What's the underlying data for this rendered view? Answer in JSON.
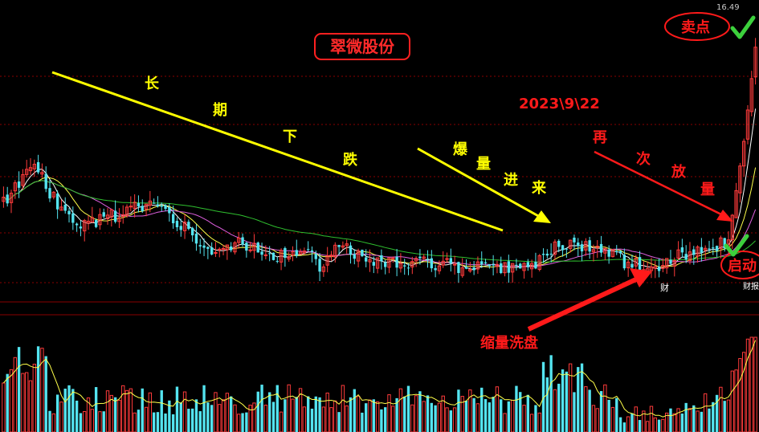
{
  "chart_data": {
    "type": "candlestick",
    "title": "翠微股份",
    "price_label": "16.49",
    "colors": {
      "up": "#ff3b3b",
      "down": "#54e4f0",
      "ma5": "#ffffff",
      "ma10": "#ffff4a",
      "ma20": "#e060e0",
      "ma60": "#2fbf2f",
      "grid": "#8a0000",
      "annotation_yellow": "#ffff00",
      "annotation_red": "#ff1a1a",
      "check": "#3cd03c"
    },
    "volume_colors": {
      "up": "#ff3b3b",
      "down": "#54e4f0"
    },
    "annotations": {
      "date": "2023\\9\\22",
      "long_decline_chars": [
        "长",
        "期",
        "下",
        "跌"
      ],
      "volume_in_chars": [
        "爆",
        "量",
        "进",
        "来"
      ],
      "again_volume_chars": [
        "再",
        "次",
        "放",
        "量"
      ],
      "shrink_wash": "缩量洗盘",
      "sell_point": "卖点",
      "start_label": "启动",
      "finance_marker": "财",
      "right_edge_label": "财报"
    },
    "anchors": [
      {
        "i": 0,
        "c": 12.2
      },
      {
        "i": 8,
        "c": 13.0
      },
      {
        "i": 14,
        "c": 12.1
      },
      {
        "i": 20,
        "c": 11.6
      },
      {
        "i": 30,
        "c": 11.9
      },
      {
        "i": 37,
        "c": 12.1
      },
      {
        "i": 45,
        "c": 11.7
      },
      {
        "i": 54,
        "c": 11.1
      },
      {
        "i": 60,
        "c": 11.2
      },
      {
        "i": 70,
        "c": 10.9
      },
      {
        "i": 78,
        "c": 11.1
      },
      {
        "i": 82,
        "c": 10.6
      },
      {
        "i": 86,
        "c": 11.2
      },
      {
        "i": 92,
        "c": 10.9
      },
      {
        "i": 103,
        "c": 10.75
      },
      {
        "i": 115,
        "c": 10.7
      },
      {
        "i": 126,
        "c": 10.6
      },
      {
        "i": 137,
        "c": 10.6
      },
      {
        "i": 141,
        "c": 11.05
      },
      {
        "i": 148,
        "c": 11.2
      },
      {
        "i": 156,
        "c": 11.0
      },
      {
        "i": 162,
        "c": 10.75
      },
      {
        "i": 168,
        "c": 10.65
      },
      {
        "i": 176,
        "c": 11.0
      },
      {
        "i": 183,
        "c": 11.1
      },
      {
        "i": 188,
        "c": 11.3
      },
      {
        "i": 192,
        "c": 13.6
      },
      {
        "i": 195,
        "c": 15.8
      }
    ],
    "price_range": [
      10.0,
      16.49
    ],
    "bar_count": 196
  }
}
